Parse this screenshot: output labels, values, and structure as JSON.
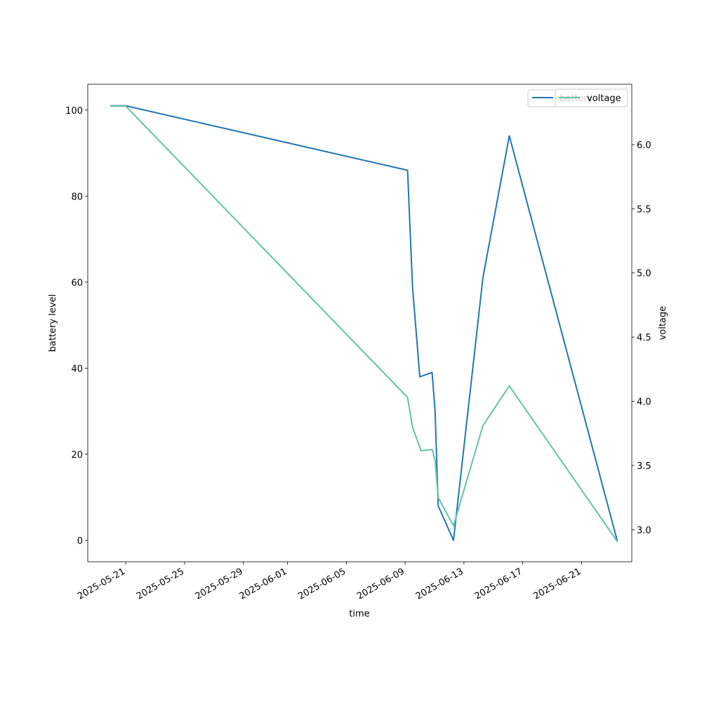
{
  "chart_data": {
    "type": "line",
    "title": "",
    "xlabel": "time",
    "ylabel_left": "battery level",
    "ylabel_right": "voltage",
    "xlim": [
      "2025-05-18T10:00",
      "2025-06-24T10:00"
    ],
    "ylim_left": [
      -5,
      106
    ],
    "ylim_right": [
      2.75,
      6.47
    ],
    "x_ticks": [
      "2025-05-21",
      "2025-05-25",
      "2025-05-29",
      "2025-06-01",
      "2025-06-05",
      "2025-06-09",
      "2025-06-13",
      "2025-06-17",
      "2025-06-21"
    ],
    "y_ticks_left": [
      0,
      20,
      40,
      60,
      80,
      100
    ],
    "y_ticks_right": [
      "3.0",
      "3.5",
      "4.0",
      "4.5",
      "5.0",
      "5.5",
      "6.0"
    ],
    "grid": false,
    "legend": [
      {
        "name": "battery",
        "color": "#1f77b4",
        "placement": "upper-right"
      },
      {
        "name": "voltage",
        "color": "#66c2a5",
        "placement": "upper-right"
      }
    ],
    "series": [
      {
        "name": "battery",
        "axis": "left",
        "color": "#1f77b4",
        "points": [
          [
            "2025-05-20T00:00",
            101
          ],
          [
            "2025-05-21T00:00",
            101
          ],
          [
            "2025-06-09T04:00",
            86
          ],
          [
            "2025-06-09T12:00",
            59
          ],
          [
            "2025-06-10T00:00",
            38
          ],
          [
            "2025-06-10T20:00",
            39
          ],
          [
            "2025-06-11T01:00",
            30
          ],
          [
            "2025-06-11T06:00",
            8
          ],
          [
            "2025-06-12T07:00",
            0
          ],
          [
            "2025-06-14T07:00",
            61
          ],
          [
            "2025-06-16T02:00",
            94
          ],
          [
            "2025-06-23T10:00",
            0
          ]
        ]
      },
      {
        "name": "voltage",
        "axis": "right",
        "color": "#66c2a5",
        "points": [
          [
            "2025-05-20T00:00",
            6.3
          ],
          [
            "2025-05-21T00:00",
            6.3
          ],
          [
            "2025-06-09T04:00",
            4.03
          ],
          [
            "2025-06-09T12:00",
            3.8
          ],
          [
            "2025-06-10T02:00",
            3.615
          ],
          [
            "2025-06-10T20:00",
            3.625
          ],
          [
            "2025-06-11T01:00",
            3.54
          ],
          [
            "2025-06-11T06:00",
            3.25
          ],
          [
            "2025-06-12T07:00",
            3.03
          ],
          [
            "2025-06-14T07:00",
            3.81
          ],
          [
            "2025-06-16T02:00",
            4.12
          ],
          [
            "2025-06-23T10:00",
            2.91
          ]
        ]
      }
    ]
  }
}
